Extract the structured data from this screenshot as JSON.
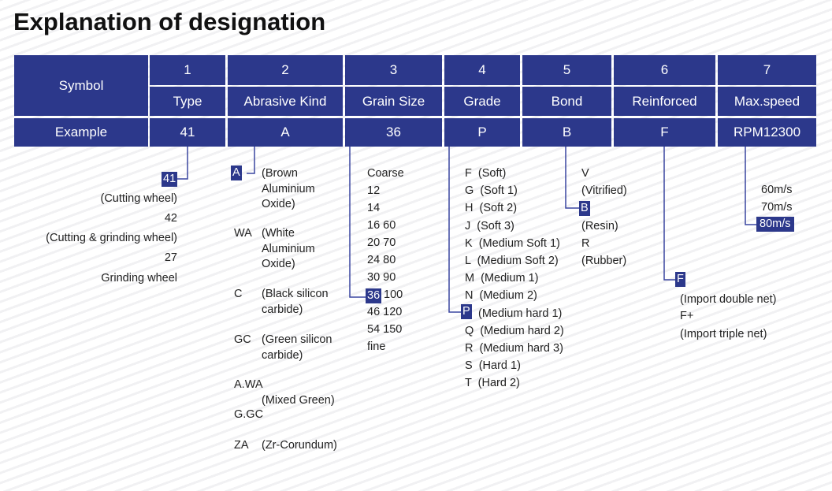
{
  "title": "Explanation of designation",
  "accent": "#2c388b",
  "table": {
    "symbol_label": "Symbol",
    "example_label": "Example",
    "columns": [
      {
        "num": "1",
        "name": "Type",
        "example": "41"
      },
      {
        "num": "2",
        "name": "Abrasive Kind",
        "example": "A"
      },
      {
        "num": "3",
        "name": "Grain Size",
        "example": "36"
      },
      {
        "num": "4",
        "name": "Grade",
        "example": "P"
      },
      {
        "num": "5",
        "name": "Bond",
        "example": "B"
      },
      {
        "num": "6",
        "name": "Reinforced",
        "example": "F"
      },
      {
        "num": "7",
        "name": "Max.speed",
        "example": "RPM12300"
      }
    ]
  },
  "type": {
    "highlight": "41",
    "lines": [
      "(Cutting wheel)",
      "42",
      "(Cutting & grinding wheel)",
      "27",
      "Grinding wheel"
    ]
  },
  "abrasive": {
    "highlight": "A",
    "items": [
      {
        "code": "",
        "desc": [
          "(Brown",
          "Aluminium",
          "Oxide)"
        ]
      },
      {
        "code": "WA",
        "desc": [
          "(White",
          "Aluminium",
          "Oxide)"
        ]
      },
      {
        "code": "C",
        "desc": [
          "(Black silicon",
          "carbide)"
        ]
      },
      {
        "code": "GC",
        "desc": [
          "(Green silicon",
          "carbide)"
        ]
      },
      {
        "code": "A.WA",
        "desc": [
          "(Mixed Green)"
        ]
      },
      {
        "code": "G.GC",
        "desc": []
      },
      {
        "code": "ZA",
        "desc": [
          "(Zr-Corundum)"
        ]
      }
    ]
  },
  "grain": {
    "highlight": "36",
    "lines": [
      "Coarse",
      "12",
      "14",
      "16 60",
      "20 70",
      "24 80",
      "30 90",
      "100",
      "46 120",
      "54 150",
      "fine"
    ]
  },
  "grade": {
    "highlight": "P",
    "lines": [
      "F  (Soft)",
      "G  (Soft 1)",
      "H  (Soft 2)",
      "J  (Soft 3)",
      "K  (Medium Soft 1)",
      "L  (Medium Soft 2)",
      "M  (Medium 1)",
      "N  (Medium 2)",
      "(Medium hard 1)",
      "Q  (Medium hard 2)",
      "R  (Medium hard 3)",
      "S  (Hard 1)",
      "T  (Hard 2)"
    ]
  },
  "bond": {
    "highlight": "B",
    "lines": [
      "V",
      "(Vitrified)",
      "(Resin)",
      "R",
      "(Rubber)"
    ]
  },
  "reinforced": {
    "highlight": "F",
    "lines": [
      "(Import double net)",
      "F+",
      "(Import triple net)"
    ]
  },
  "speed": {
    "highlight": "80m/s",
    "lines": [
      "60m/s",
      "70m/s"
    ]
  }
}
